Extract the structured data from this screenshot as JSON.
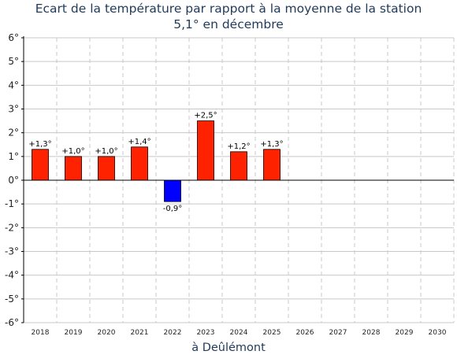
{
  "chart_data": {
    "type": "bar",
    "title": "Ecart de la température par rapport à la moyenne de la station",
    "subtitle": "5,1° en décembre",
    "xlabel": "à Deûlémont",
    "ylabel": "",
    "ylim": [
      -6,
      6
    ],
    "yticks": [
      6,
      5,
      4,
      3,
      2,
      1,
      0,
      -1,
      -2,
      -3,
      -4,
      -5,
      -6
    ],
    "ytick_labels": [
      "6°",
      "5°",
      "4°",
      "3°",
      "2°",
      "1°",
      "0°",
      "-1°",
      "-2°",
      "-3°",
      "-4°",
      "-5°",
      "-6°"
    ],
    "categories": [
      "2018",
      "2019",
      "2020",
      "2021",
      "2022",
      "2023",
      "2024",
      "2025",
      "2026",
      "2027",
      "2028",
      "2029",
      "2030"
    ],
    "values": [
      1.3,
      1.0,
      1.0,
      1.4,
      -0.9,
      2.5,
      1.2,
      1.3,
      null,
      null,
      null,
      null,
      null
    ],
    "data_labels": [
      "+1,3°",
      "+1,0°",
      "+1,0°",
      "+1,4°",
      "-0,9°",
      "+2,5°",
      "+1,2°",
      "+1,3°",
      "",
      "",
      "",
      "",
      ""
    ],
    "grid": true,
    "colors": {
      "positive": "#ff2200",
      "negative": "#0000ff",
      "title": "#1f3a5a",
      "grid": "#c8c8c8",
      "zero_line": "#000000"
    }
  }
}
